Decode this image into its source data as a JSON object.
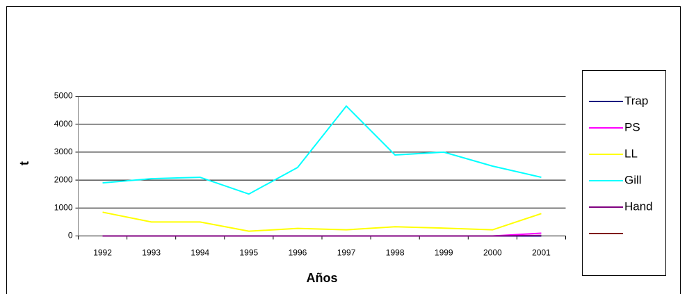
{
  "chart_data": {
    "type": "line",
    "x_label": "Años",
    "y_label": "t",
    "categories": [
      "1992",
      "1993",
      "1994",
      "1995",
      "1996",
      "1997",
      "1998",
      "1999",
      "2000",
      "2001"
    ],
    "series": [
      {
        "name": "Trap",
        "color": "#000080",
        "values": [
          0,
          0,
          0,
          0,
          0,
          0,
          0,
          0,
          0,
          0
        ]
      },
      {
        "name": "PS",
        "color": "#ff00ff",
        "values": [
          0,
          0,
          0,
          0,
          0,
          0,
          0,
          0,
          0,
          100
        ]
      },
      {
        "name": "LL",
        "color": "#ffff00",
        "values": [
          850,
          500,
          500,
          170,
          270,
          220,
          330,
          280,
          220,
          800
        ]
      },
      {
        "name": "Gill",
        "color": "#00ffff",
        "values": [
          1900,
          2050,
          2100,
          1500,
          2450,
          4650,
          2900,
          3000,
          2500,
          2100
        ]
      },
      {
        "name": "Hand",
        "color": "#800080",
        "values": [
          0,
          0,
          0,
          0,
          0,
          0,
          0,
          0,
          0,
          20
        ]
      },
      {
        "name": null,
        "color": "#800000",
        "values": [
          null,
          null,
          null,
          null,
          null,
          null,
          null,
          null,
          null,
          null
        ]
      }
    ],
    "ylim": [
      0,
      5000
    ],
    "yticks": [
      0,
      1000,
      2000,
      3000,
      4000,
      5000
    ],
    "grid": true
  }
}
